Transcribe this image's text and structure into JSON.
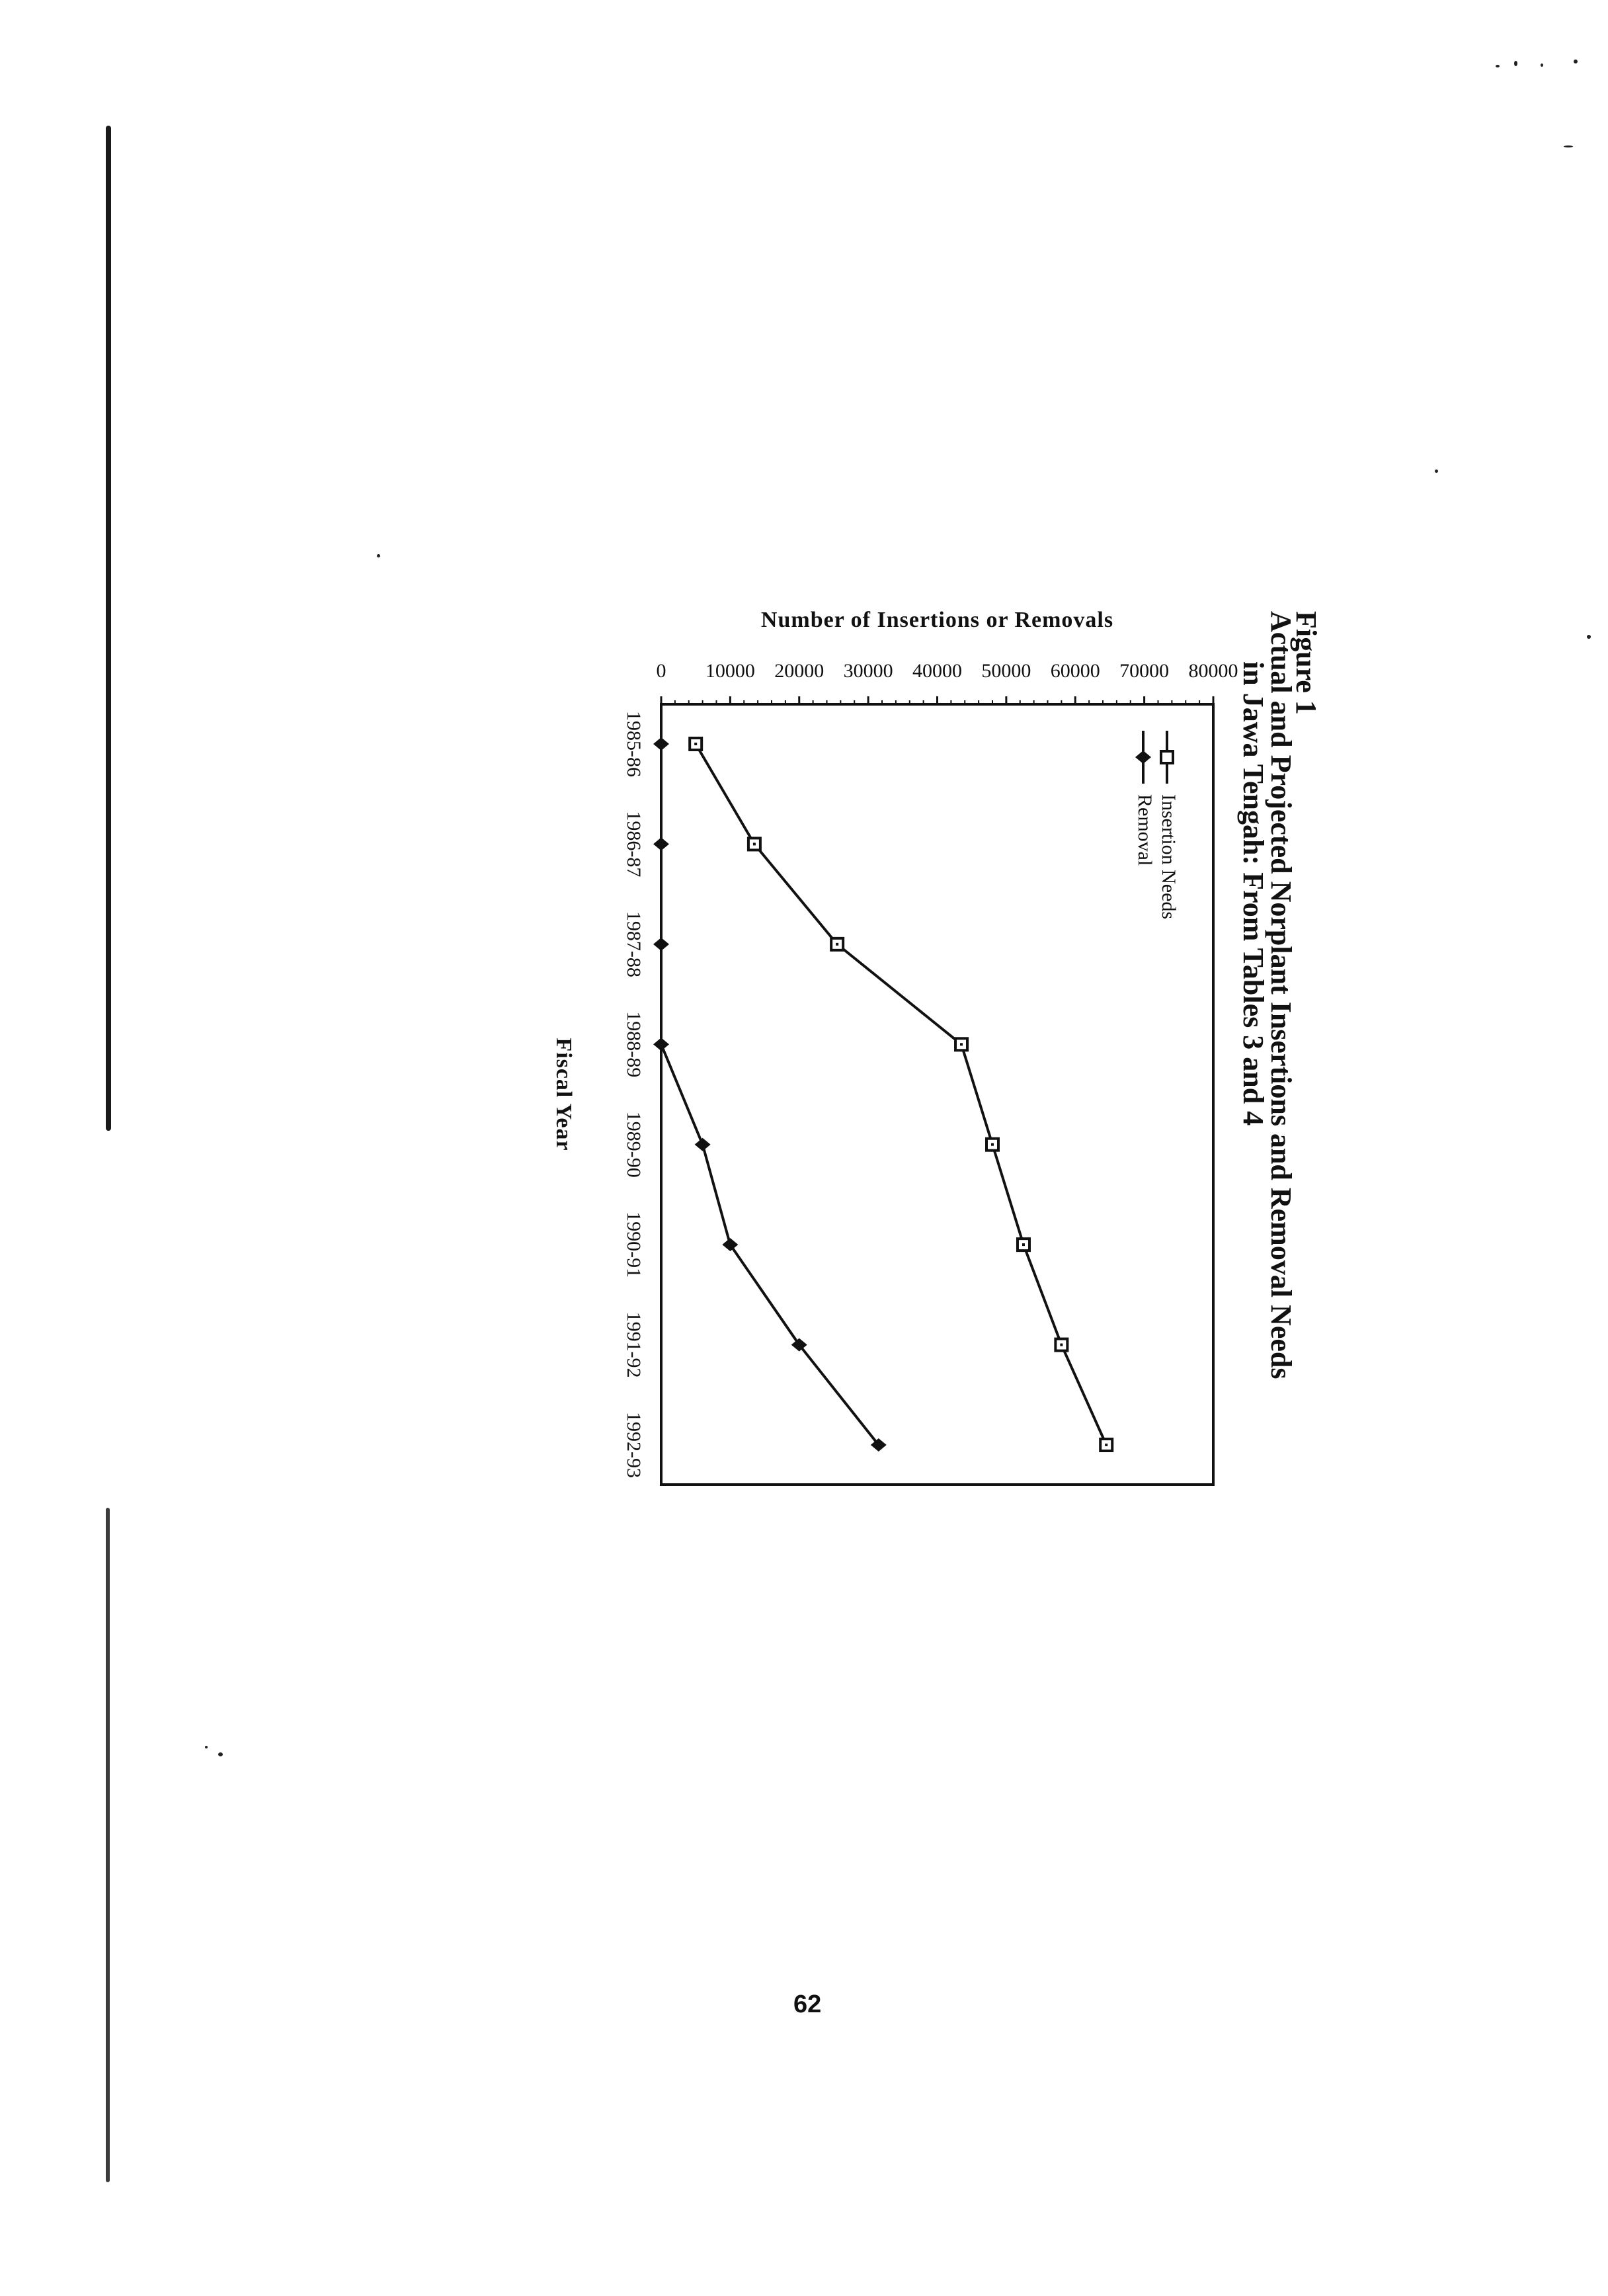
{
  "figure": {
    "number": "Figure 1",
    "title_line1": "Actual and Projected Norplant Insertions and Removal Needs",
    "title_line2": "in Jawa Tengah: From Tables 3 and 4"
  },
  "page_number": "62",
  "chart_data": {
    "type": "line",
    "title": "Actual and Projected Norplant Insertions and Removal Needs in Jawa Tengah: From Tables 3 and 4",
    "xlabel": "Fiscal Year",
    "ylabel": "Number of Insertions or Removals",
    "categories": [
      "1985-86",
      "1986-87",
      "1987-88",
      "1988-89",
      "1989-90",
      "1990-91",
      "1991-92",
      "1992-93"
    ],
    "ylim": [
      0,
      80000
    ],
    "yticks": [
      0,
      10000,
      20000,
      30000,
      40000,
      50000,
      60000,
      70000,
      80000
    ],
    "ytick_labels": [
      "0",
      "10000",
      "20000",
      "30000",
      "40000",
      "50000",
      "60000",
      "70000",
      "80000"
    ],
    "legend_position": "top-left",
    "grid": false,
    "series": [
      {
        "name": "Insertion Needs",
        "marker": "open-square",
        "color": "#111111",
        "values": [
          5000,
          13500,
          25500,
          43500,
          48000,
          52500,
          58000,
          64500
        ]
      },
      {
        "name": "Removal",
        "marker": "filled-diamond",
        "color": "#111111",
        "values": [
          0,
          0,
          0,
          0,
          6000,
          10000,
          20000,
          31500
        ]
      }
    ]
  }
}
